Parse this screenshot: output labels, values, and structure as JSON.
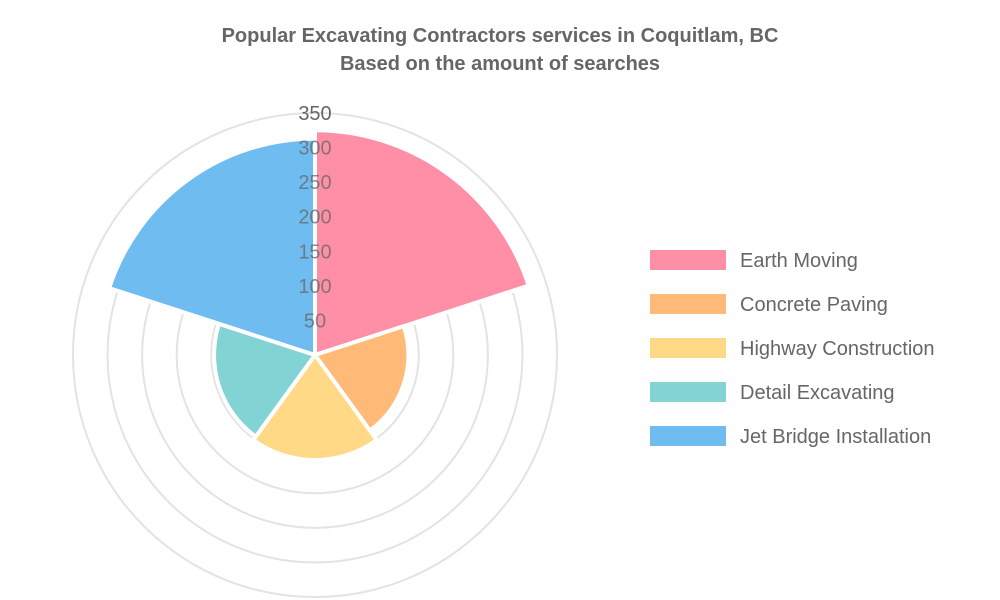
{
  "chart_data": {
    "type": "polarArea",
    "title": [
      "Popular Excavating Contractors services in Coquitlam, BC",
      "Based on the amount of searches"
    ],
    "categories": [
      "Earth Moving",
      "Concrete Paving",
      "Highway Construction",
      "Detail Excavating",
      "Jet Bridge Installation"
    ],
    "values": [
      325,
      135,
      152,
      146,
      313
    ],
    "colors": [
      "#ff8fa6",
      "#ffba78",
      "#ffd985",
      "#82d3d3",
      "#6fbcf0"
    ],
    "rlim": [
      0,
      350
    ],
    "ticks": [
      "50",
      "100",
      "150",
      "200",
      "250",
      "300",
      "350"
    ],
    "grid": true,
    "legend": "right"
  }
}
